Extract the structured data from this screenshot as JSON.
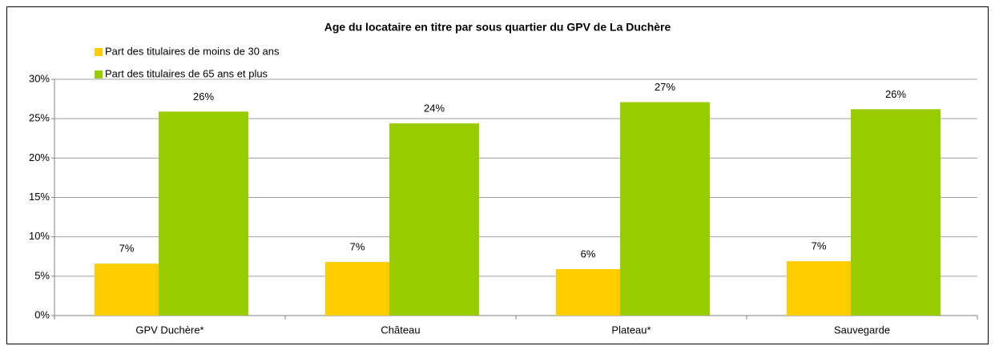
{
  "chart_data": {
    "type": "bar",
    "title": "Age du locataire en titre par sous quartier du GPV de La Duchère",
    "categories": [
      "GPV Duchère*",
      "Château",
      "Plateau*",
      "Sauvegarde"
    ],
    "series": [
      {
        "name": "Part des titulaires de moins de 30 ans",
        "color": "#ffcc00",
        "values": [
          6.6,
          6.8,
          5.9,
          6.9
        ],
        "value_labels": [
          "7%",
          "7%",
          "6%",
          "7%"
        ]
      },
      {
        "name": "Part des titulaires de 65 ans et plus",
        "color": "#99cc00",
        "values": [
          25.9,
          24.4,
          27.1,
          26.2
        ],
        "value_labels": [
          "26%",
          "24%",
          "27%",
          "26%"
        ]
      }
    ],
    "ylim": [
      0,
      30
    ],
    "yticks": [
      {
        "value": 0,
        "label": "0%"
      },
      {
        "value": 5,
        "label": "5%"
      },
      {
        "value": 10,
        "label": "10%"
      },
      {
        "value": 15,
        "label": "15%"
      },
      {
        "value": 20,
        "label": "20%"
      },
      {
        "value": 25,
        "label": "25%"
      },
      {
        "value": 30,
        "label": "30%"
      }
    ],
    "grid": true,
    "legend": "top-left"
  }
}
